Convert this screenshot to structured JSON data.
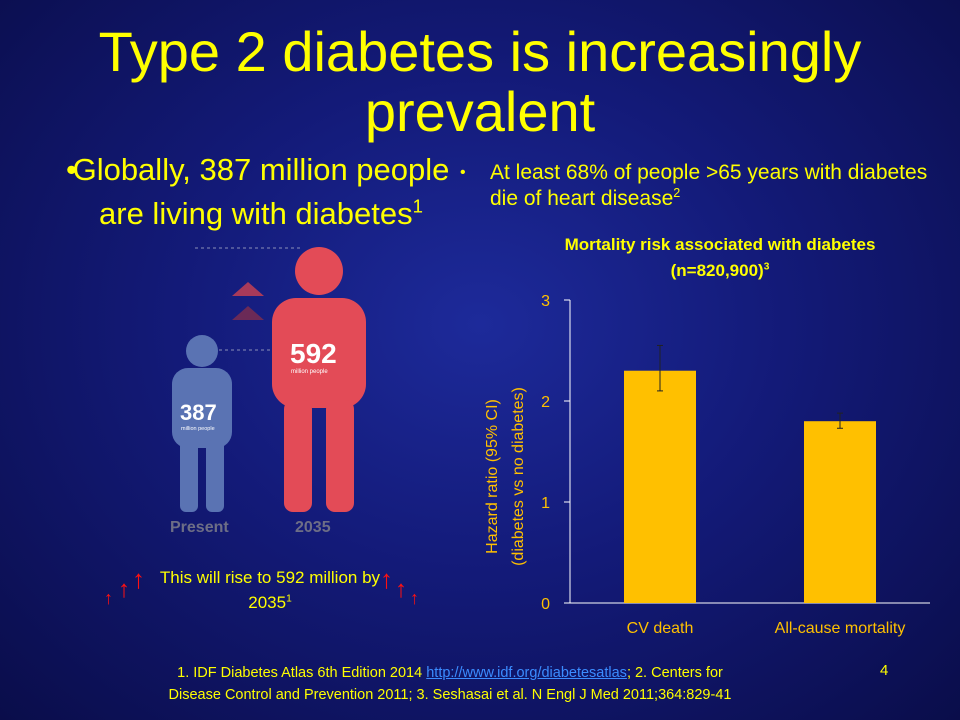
{
  "title": "Type 2 diabetes is increasingly prevalent",
  "left_bullet": {
    "marker": "•",
    "text": "Globally, 387 million people are living with diabetes",
    "ref": "1"
  },
  "right_bullet": {
    "marker": "•",
    "text": "At least 68% of people >65 years with diabetes die of heart disease",
    "ref": "2"
  },
  "infographic": {
    "present_label": "Present",
    "future_label": "2035",
    "present_value": "387",
    "future_value": "592",
    "unit_label": "million people",
    "colors": {
      "present": "#5a73b3",
      "future": "#e34b57",
      "arrow_dark": "#6b2a57",
      "arrow_light": "#a83a5a"
    }
  },
  "rise_note": {
    "text": "This will rise to 592 million by 2035",
    "ref": "1",
    "arrow_glyph": "↑"
  },
  "chart_data": {
    "type": "bar",
    "title": "Mortality risk associated with diabetes (n=820,900)",
    "title_ref": "3",
    "categories": [
      "CV death",
      "All-cause mortality"
    ],
    "values": [
      2.3,
      1.8
    ],
    "error_low": [
      2.1,
      1.73
    ],
    "error_high": [
      2.55,
      1.88
    ],
    "ylabel": "Hazard ratio (95% CI)",
    "ylabel2": "(diabetes vs no diabetes)",
    "ylim": [
      0,
      3
    ],
    "yticks": [
      "0",
      "1",
      "2",
      "3"
    ],
    "grid": false,
    "colors": {
      "bar": "#ffc000",
      "axis_text": "#ffc000"
    }
  },
  "references": {
    "line1_pre": "1. IDF Diabetes Atlas 6th Edition 2014 ",
    "link": "http://www.idf.org/diabetesatlas",
    "line1_post": "; 2. Centers for",
    "line2": "Disease Control and Prevention 2011; 3. Seshasai et al. N Engl J Med 2011;364:829-41"
  },
  "page_number": "4"
}
